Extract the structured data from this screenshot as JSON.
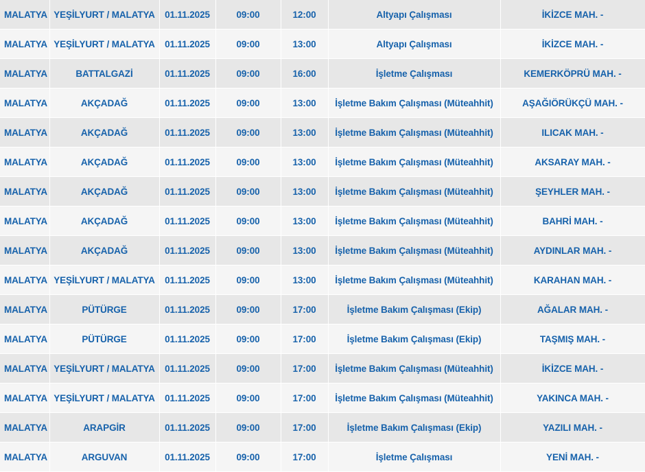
{
  "outage_table": {
    "rows": [
      [
        "MALATYA",
        "YEŞİLYURT / MALATYA",
        "01.11.2025",
        "09:00",
        "12:00",
        "Altyapı Çalışması",
        "İKİZCE MAH. -"
      ],
      [
        "MALATYA",
        "YEŞİLYURT / MALATYA",
        "01.11.2025",
        "09:00",
        "13:00",
        "Altyapı Çalışması",
        "İKİZCE MAH. -"
      ],
      [
        "MALATYA",
        "BATTALGAZİ",
        "01.11.2025",
        "09:00",
        "16:00",
        "İşletme Çalışması",
        "KEMERKÖPRÜ MAH. -"
      ],
      [
        "MALATYA",
        "AKÇADAĞ",
        "01.11.2025",
        "09:00",
        "13:00",
        "İşletme Bakım Çalışması (Müteahhit)",
        "AŞAĞIÖRÜKÇÜ MAH. -"
      ],
      [
        "MALATYA",
        "AKÇADAĞ",
        "01.11.2025",
        "09:00",
        "13:00",
        "İşletme Bakım Çalışması (Müteahhit)",
        "ILICAK MAH. -"
      ],
      [
        "MALATYA",
        "AKÇADAĞ",
        "01.11.2025",
        "09:00",
        "13:00",
        "İşletme Bakım Çalışması (Müteahhit)",
        "AKSARAY MAH. -"
      ],
      [
        "MALATYA",
        "AKÇADAĞ",
        "01.11.2025",
        "09:00",
        "13:00",
        "İşletme Bakım Çalışması (Müteahhit)",
        "ŞEYHLER MAH. -"
      ],
      [
        "MALATYA",
        "AKÇADAĞ",
        "01.11.2025",
        "09:00",
        "13:00",
        "İşletme Bakım Çalışması (Müteahhit)",
        "BAHRİ MAH. -"
      ],
      [
        "MALATYA",
        "AKÇADAĞ",
        "01.11.2025",
        "09:00",
        "13:00",
        "İşletme Bakım Çalışması (Müteahhit)",
        "AYDINLAR MAH. -"
      ],
      [
        "MALATYA",
        "YEŞİLYURT / MALATYA",
        "01.11.2025",
        "09:00",
        "13:00",
        "İşletme Bakım Çalışması (Müteahhit)",
        "KARAHAN MAH. -"
      ],
      [
        "MALATYA",
        "PÜTÜRGE",
        "01.11.2025",
        "09:00",
        "17:00",
        "İşletme Bakım Çalışması (Ekip)",
        "AĞALAR MAH. -"
      ],
      [
        "MALATYA",
        "PÜTÜRGE",
        "01.11.2025",
        "09:00",
        "17:00",
        "İşletme Bakım Çalışması (Ekip)",
        "TAŞMIŞ MAH. -"
      ],
      [
        "MALATYA",
        "YEŞİLYURT / MALATYA",
        "01.11.2025",
        "09:00",
        "17:00",
        "İşletme Bakım Çalışması (Müteahhit)",
        "İKİZCE MAH. -"
      ],
      [
        "MALATYA",
        "YEŞİLYURT / MALATYA",
        "01.11.2025",
        "09:00",
        "17:00",
        "İşletme Bakım Çalışması (Müteahhit)",
        "YAKINCA MAH. -"
      ],
      [
        "MALATYA",
        "ARAPGİR",
        "01.11.2025",
        "09:00",
        "17:00",
        "İşletme Bakım Çalışması (Ekip)",
        "YAZILI MAH. -"
      ],
      [
        "MALATYA",
        "ARGUVAN",
        "01.11.2025",
        "09:00",
        "17:00",
        "İşletme Çalışması",
        "YENİ MAH. -"
      ]
    ]
  },
  "colors": {
    "text": "#1762ab",
    "row_odd": "#e7e7e7",
    "row_even": "#f5f5f5"
  }
}
